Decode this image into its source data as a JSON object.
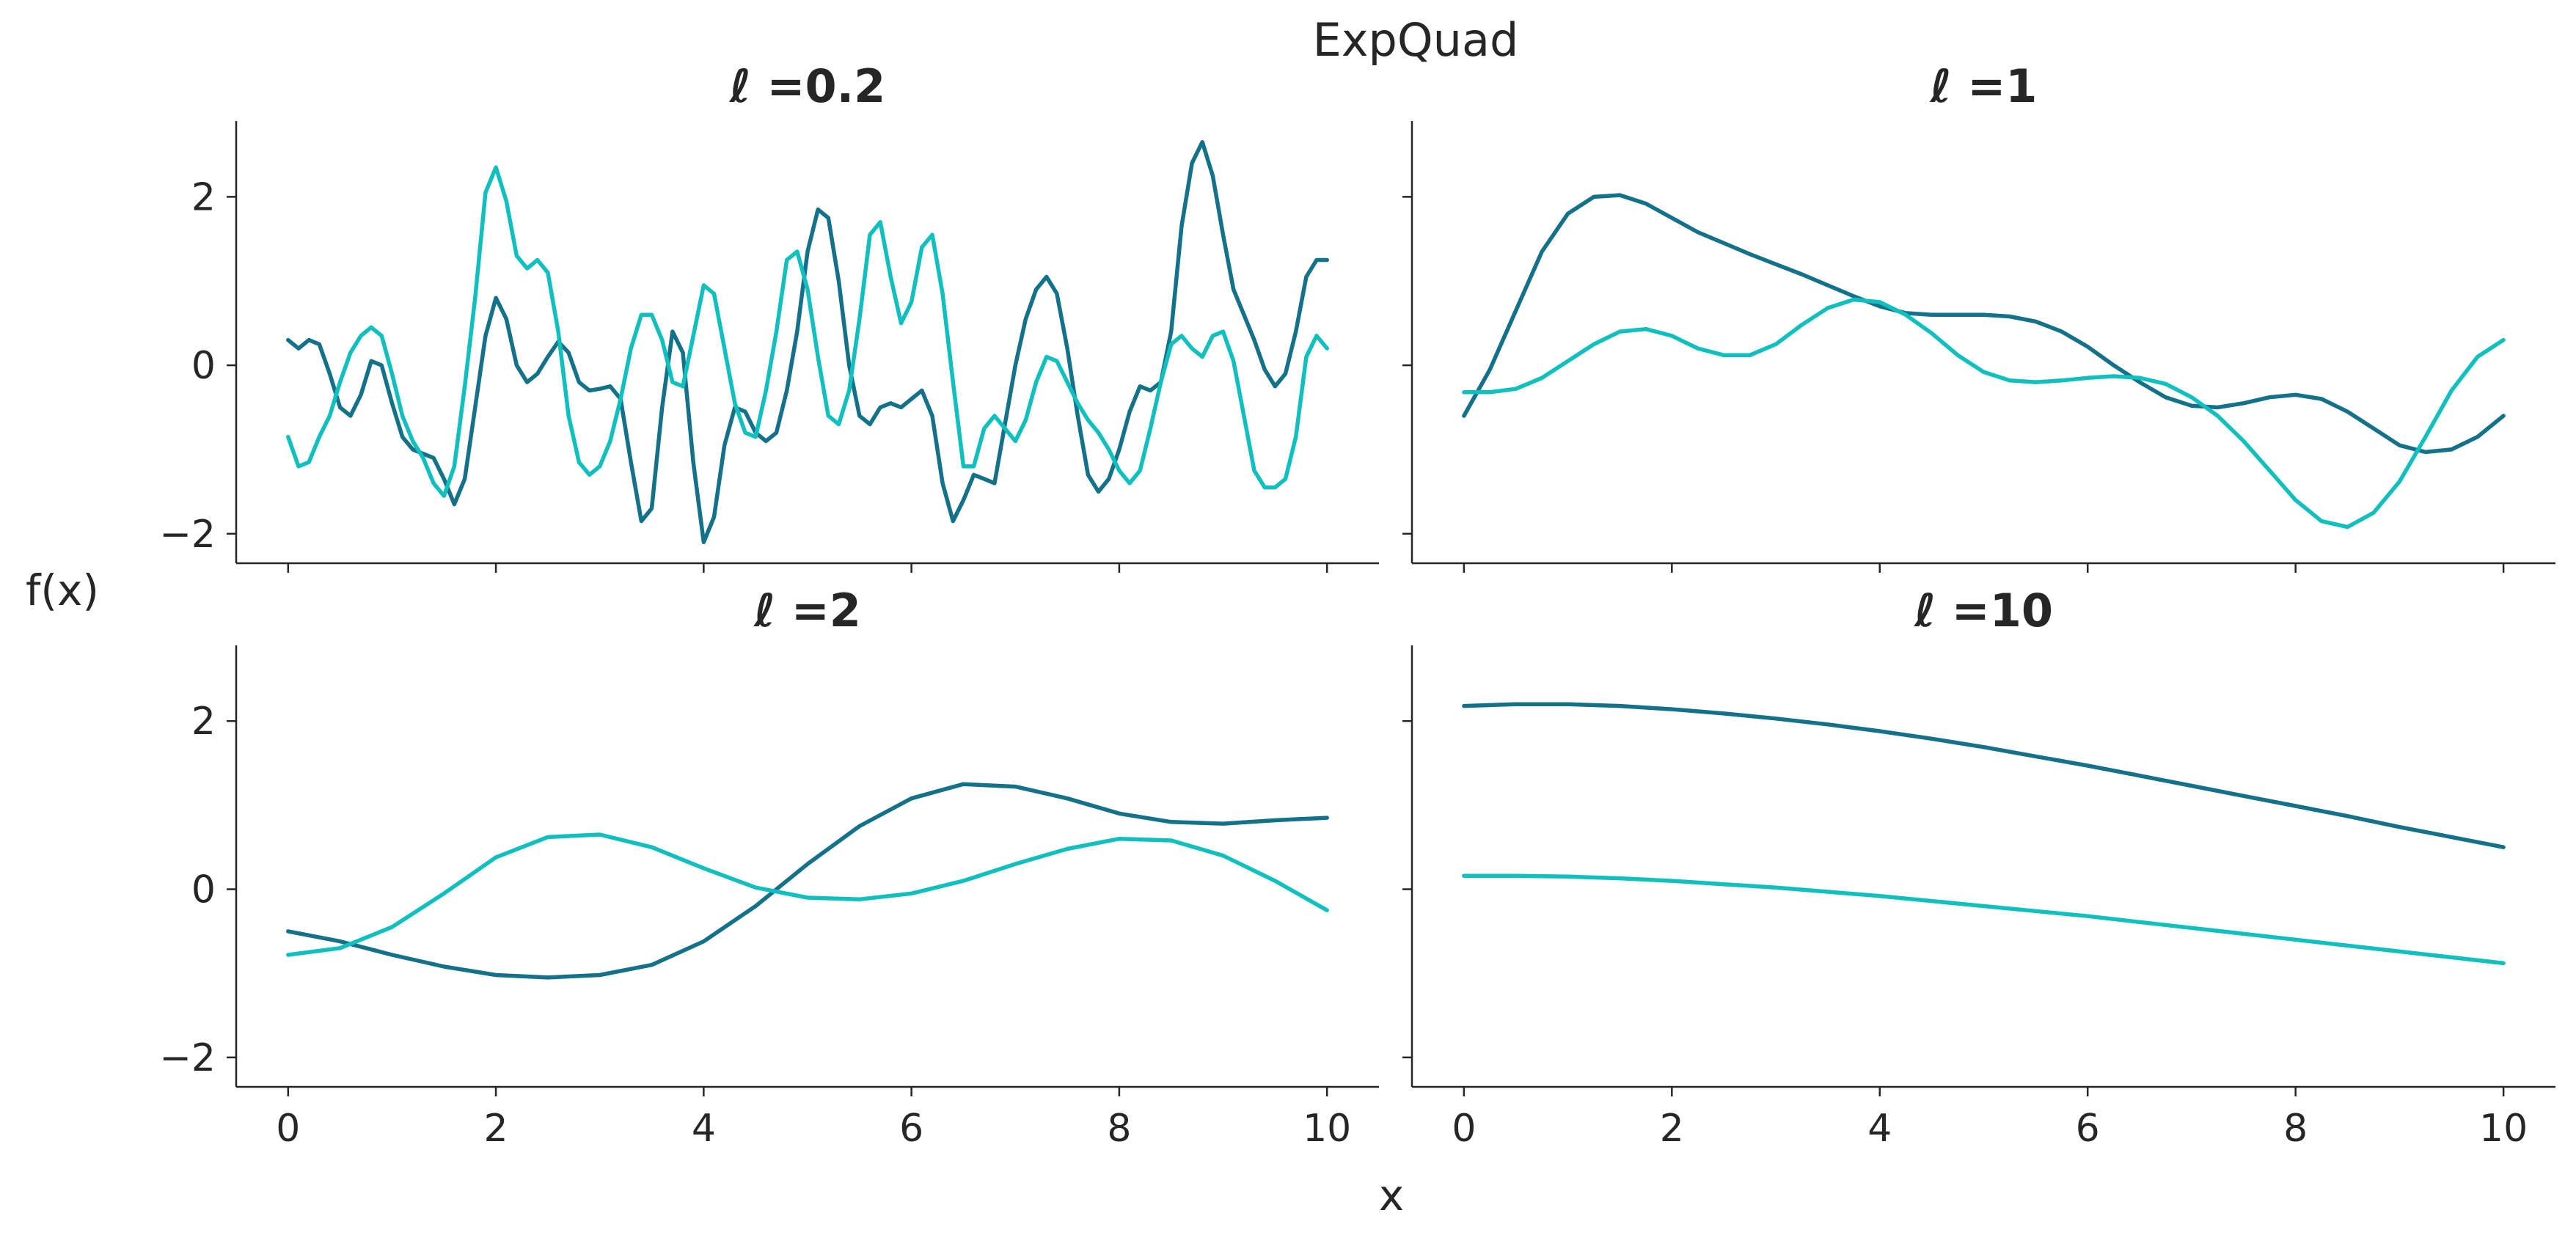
{
  "figure": {
    "title": "ExpQuad",
    "xlabel": "x",
    "ylabel": "f(x)",
    "colors": [
      "#13718a",
      "#11bfbf"
    ]
  },
  "chart_data": [
    {
      "type": "line",
      "title": "ℓ =0.2",
      "xlim": [
        -0.5,
        10.5
      ],
      "ylim": [
        -2.35,
        2.9
      ],
      "xticks": [
        0,
        2,
        4,
        6,
        8,
        10
      ],
      "yticks": [
        -2,
        0,
        2
      ],
      "show_xticklabels": false,
      "show_yticklabels": true,
      "series": [
        {
          "color": "#13718a",
          "x": [
            0,
            0.1,
            0.2,
            0.3,
            0.4,
            0.5,
            0.6,
            0.7,
            0.8,
            0.9,
            1.0,
            1.1,
            1.2,
            1.3,
            1.4,
            1.5,
            1.6,
            1.7,
            1.8,
            1.9,
            2.0,
            2.1,
            2.2,
            2.3,
            2.4,
            2.5,
            2.6,
            2.7,
            2.8,
            2.9,
            3.0,
            3.1,
            3.2,
            3.3,
            3.4,
            3.5,
            3.6,
            3.7,
            3.8,
            3.9,
            4.0,
            4.1,
            4.2,
            4.3,
            4.4,
            4.5,
            4.6,
            4.7,
            4.8,
            4.9,
            5.0,
            5.1,
            5.2,
            5.3,
            5.4,
            5.5,
            5.6,
            5.7,
            5.8,
            5.9,
            6.0,
            6.1,
            6.2,
            6.3,
            6.4,
            6.5,
            6.6,
            6.7,
            6.8,
            6.9,
            7.0,
            7.1,
            7.2,
            7.3,
            7.4,
            7.5,
            7.6,
            7.7,
            7.8,
            7.9,
            8.0,
            8.1,
            8.2,
            8.3,
            8.4,
            8.5,
            8.6,
            8.7,
            8.8,
            8.9,
            9.0,
            9.1,
            9.2,
            9.3,
            9.4,
            9.5,
            9.6,
            9.7,
            9.8,
            9.9,
            10.0
          ],
          "y": [
            0.3,
            0.2,
            0.3,
            0.25,
            -0.1,
            -0.5,
            -0.6,
            -0.35,
            0.05,
            0.0,
            -0.45,
            -0.85,
            -1.0,
            -1.05,
            -1.1,
            -1.35,
            -1.65,
            -1.35,
            -0.5,
            0.35,
            0.8,
            0.55,
            0.0,
            -0.2,
            -0.1,
            0.1,
            0.28,
            0.15,
            -0.2,
            -0.3,
            -0.28,
            -0.25,
            -0.4,
            -1.15,
            -1.85,
            -1.7,
            -0.5,
            0.4,
            0.15,
            -1.15,
            -2.1,
            -1.8,
            -0.95,
            -0.5,
            -0.55,
            -0.8,
            -0.9,
            -0.8,
            -0.3,
            0.4,
            1.35,
            1.85,
            1.75,
            1.0,
            0.0,
            -0.6,
            -0.7,
            -0.5,
            -0.45,
            -0.5,
            -0.4,
            -0.3,
            -0.6,
            -1.4,
            -1.85,
            -1.6,
            -1.3,
            -1.35,
            -1.4,
            -0.7,
            0.0,
            0.55,
            0.9,
            1.05,
            0.85,
            0.2,
            -0.6,
            -1.3,
            -1.5,
            -1.35,
            -1.0,
            -0.55,
            -0.25,
            -0.3,
            -0.2,
            0.4,
            1.65,
            2.4,
            2.65,
            2.25,
            1.55,
            0.9,
            0.6,
            0.3,
            -0.05,
            -0.25,
            -0.1,
            0.4,
            1.05,
            1.25,
            1.25
          ]
        },
        {
          "color": "#11bfbf",
          "x": [
            0,
            0.1,
            0.2,
            0.3,
            0.4,
            0.5,
            0.6,
            0.7,
            0.8,
            0.9,
            1.0,
            1.1,
            1.2,
            1.3,
            1.4,
            1.5,
            1.6,
            1.7,
            1.8,
            1.9,
            2.0,
            2.1,
            2.2,
            2.3,
            2.4,
            2.5,
            2.6,
            2.7,
            2.8,
            2.9,
            3.0,
            3.1,
            3.2,
            3.3,
            3.4,
            3.5,
            3.6,
            3.7,
            3.8,
            3.9,
            4.0,
            4.1,
            4.2,
            4.3,
            4.4,
            4.5,
            4.6,
            4.7,
            4.8,
            4.9,
            5.0,
            5.1,
            5.2,
            5.3,
            5.4,
            5.5,
            5.6,
            5.7,
            5.8,
            5.9,
            6.0,
            6.1,
            6.2,
            6.3,
            6.4,
            6.5,
            6.6,
            6.7,
            6.8,
            6.9,
            7.0,
            7.1,
            7.2,
            7.3,
            7.4,
            7.5,
            7.6,
            7.7,
            7.8,
            7.9,
            8.0,
            8.1,
            8.2,
            8.3,
            8.4,
            8.5,
            8.6,
            8.7,
            8.8,
            8.9,
            9.0,
            9.1,
            9.2,
            9.3,
            9.4,
            9.5,
            9.6,
            9.7,
            9.8,
            9.9,
            10.0
          ],
          "y": [
            -0.85,
            -1.2,
            -1.15,
            -0.85,
            -0.6,
            -0.2,
            0.15,
            0.35,
            0.45,
            0.35,
            -0.1,
            -0.6,
            -0.9,
            -1.1,
            -1.4,
            -1.55,
            -1.2,
            -0.25,
            0.8,
            2.05,
            2.35,
            1.95,
            1.3,
            1.15,
            1.25,
            1.1,
            0.4,
            -0.6,
            -1.15,
            -1.3,
            -1.2,
            -0.9,
            -0.4,
            0.2,
            0.6,
            0.6,
            0.3,
            -0.2,
            -0.25,
            0.35,
            0.95,
            0.85,
            0.2,
            -0.45,
            -0.8,
            -0.85,
            -0.3,
            0.4,
            1.25,
            1.35,
            0.9,
            0.1,
            -0.6,
            -0.7,
            -0.3,
            0.55,
            1.55,
            1.7,
            1.05,
            0.5,
            0.75,
            1.4,
            1.55,
            0.85,
            -0.2,
            -1.2,
            -1.2,
            -0.75,
            -0.6,
            -0.75,
            -0.9,
            -0.65,
            -0.2,
            0.1,
            0.05,
            -0.2,
            -0.45,
            -0.65,
            -0.8,
            -1.0,
            -1.25,
            -1.4,
            -1.25,
            -0.75,
            -0.2,
            0.25,
            0.35,
            0.2,
            0.1,
            0.35,
            0.4,
            0.05,
            -0.6,
            -1.25,
            -1.45,
            -1.45,
            -1.35,
            -0.85,
            0.1,
            0.35,
            0.2
          ]
        }
      ]
    },
    {
      "type": "line",
      "title": "ℓ =1",
      "xlim": [
        -0.5,
        10.5
      ],
      "ylim": [
        -2.35,
        2.9
      ],
      "xticks": [
        0,
        2,
        4,
        6,
        8,
        10
      ],
      "yticks": [
        -2,
        0,
        2
      ],
      "show_xticklabels": false,
      "show_yticklabels": false,
      "series": [
        {
          "color": "#13718a",
          "x": [
            0,
            0.25,
            0.5,
            0.75,
            1.0,
            1.25,
            1.5,
            1.75,
            2.0,
            2.25,
            2.5,
            2.75,
            3.0,
            3.25,
            3.5,
            3.75,
            4.0,
            4.25,
            4.5,
            4.75,
            5.0,
            5.25,
            5.5,
            5.75,
            6.0,
            6.25,
            6.5,
            6.75,
            7.0,
            7.25,
            7.5,
            7.75,
            8.0,
            8.25,
            8.5,
            8.75,
            9.0,
            9.25,
            9.5,
            9.75,
            10.0
          ],
          "y": [
            -0.6,
            -0.05,
            0.65,
            1.35,
            1.8,
            2.0,
            2.02,
            1.92,
            1.75,
            1.58,
            1.45,
            1.32,
            1.2,
            1.08,
            0.95,
            0.82,
            0.7,
            0.62,
            0.6,
            0.6,
            0.6,
            0.58,
            0.52,
            0.4,
            0.22,
            0.0,
            -0.2,
            -0.38,
            -0.48,
            -0.5,
            -0.45,
            -0.38,
            -0.35,
            -0.4,
            -0.55,
            -0.75,
            -0.95,
            -1.03,
            -1.0,
            -0.85,
            -0.6
          ]
        },
        {
          "color": "#11bfbf",
          "x": [
            0,
            0.25,
            0.5,
            0.75,
            1.0,
            1.25,
            1.5,
            1.75,
            2.0,
            2.25,
            2.5,
            2.75,
            3.0,
            3.25,
            3.5,
            3.75,
            4.0,
            4.25,
            4.5,
            4.75,
            5.0,
            5.25,
            5.5,
            5.75,
            6.0,
            6.25,
            6.5,
            6.75,
            7.0,
            7.25,
            7.5,
            7.75,
            8.0,
            8.25,
            8.5,
            8.75,
            9.0,
            9.25,
            9.5,
            9.75,
            10.0
          ],
          "y": [
            -0.32,
            -0.32,
            -0.28,
            -0.15,
            0.05,
            0.25,
            0.4,
            0.43,
            0.35,
            0.2,
            0.12,
            0.12,
            0.25,
            0.48,
            0.68,
            0.78,
            0.75,
            0.6,
            0.38,
            0.12,
            -0.08,
            -0.18,
            -0.2,
            -0.18,
            -0.15,
            -0.13,
            -0.15,
            -0.22,
            -0.38,
            -0.6,
            -0.9,
            -1.25,
            -1.6,
            -1.85,
            -1.92,
            -1.75,
            -1.38,
            -0.85,
            -0.3,
            0.1,
            0.3
          ]
        }
      ]
    },
    {
      "type": "line",
      "title": "ℓ =2",
      "xlim": [
        -0.5,
        10.5
      ],
      "ylim": [
        -2.35,
        2.9
      ],
      "xticks": [
        0,
        2,
        4,
        6,
        8,
        10
      ],
      "yticks": [
        -2,
        0,
        2
      ],
      "show_xticklabels": true,
      "show_yticklabels": true,
      "series": [
        {
          "color": "#13718a",
          "x": [
            0,
            0.5,
            1.0,
            1.5,
            2.0,
            2.5,
            3.0,
            3.5,
            4.0,
            4.5,
            5.0,
            5.5,
            6.0,
            6.5,
            7.0,
            7.5,
            8.0,
            8.5,
            9.0,
            9.5,
            10.0
          ],
          "y": [
            -0.5,
            -0.62,
            -0.78,
            -0.92,
            -1.02,
            -1.05,
            -1.02,
            -0.9,
            -0.62,
            -0.2,
            0.3,
            0.75,
            1.08,
            1.25,
            1.22,
            1.08,
            0.9,
            0.8,
            0.78,
            0.82,
            0.85
          ]
        },
        {
          "color": "#11bfbf",
          "x": [
            0,
            0.5,
            1.0,
            1.5,
            2.0,
            2.5,
            3.0,
            3.5,
            4.0,
            4.5,
            5.0,
            5.5,
            6.0,
            6.5,
            7.0,
            7.5,
            8.0,
            8.5,
            9.0,
            9.5,
            10.0
          ],
          "y": [
            -0.78,
            -0.7,
            -0.45,
            -0.05,
            0.38,
            0.62,
            0.65,
            0.5,
            0.25,
            0.02,
            -0.1,
            -0.12,
            -0.05,
            0.1,
            0.3,
            0.48,
            0.6,
            0.58,
            0.4,
            0.1,
            -0.25
          ]
        }
      ]
    },
    {
      "type": "line",
      "title": "ℓ =10",
      "xlim": [
        -0.5,
        10.5
      ],
      "ylim": [
        -2.35,
        2.9
      ],
      "xticks": [
        0,
        2,
        4,
        6,
        8,
        10
      ],
      "yticks": [
        -2,
        0,
        2
      ],
      "show_xticklabels": true,
      "show_yticklabels": false,
      "series": [
        {
          "color": "#13718a",
          "x": [
            0,
            0.5,
            1.0,
            1.5,
            2.0,
            2.5,
            3.0,
            3.5,
            4.0,
            4.5,
            5.0,
            5.5,
            6.0,
            6.5,
            7.0,
            7.5,
            8.0,
            8.5,
            9.0,
            9.5,
            10.0
          ],
          "y": [
            2.18,
            2.2,
            2.2,
            2.18,
            2.14,
            2.09,
            2.03,
            1.96,
            1.88,
            1.79,
            1.69,
            1.58,
            1.47,
            1.35,
            1.23,
            1.11,
            0.99,
            0.87,
            0.74,
            0.62,
            0.5
          ]
        },
        {
          "color": "#11bfbf",
          "x": [
            0,
            0.5,
            1.0,
            1.5,
            2.0,
            2.5,
            3.0,
            3.5,
            4.0,
            4.5,
            5.0,
            5.5,
            6.0,
            6.5,
            7.0,
            7.5,
            8.0,
            8.5,
            9.0,
            9.5,
            10.0
          ],
          "y": [
            0.16,
            0.16,
            0.15,
            0.13,
            0.1,
            0.06,
            0.02,
            -0.03,
            -0.08,
            -0.14,
            -0.2,
            -0.26,
            -0.32,
            -0.39,
            -0.46,
            -0.53,
            -0.6,
            -0.67,
            -0.74,
            -0.81,
            -0.88
          ]
        }
      ]
    }
  ]
}
